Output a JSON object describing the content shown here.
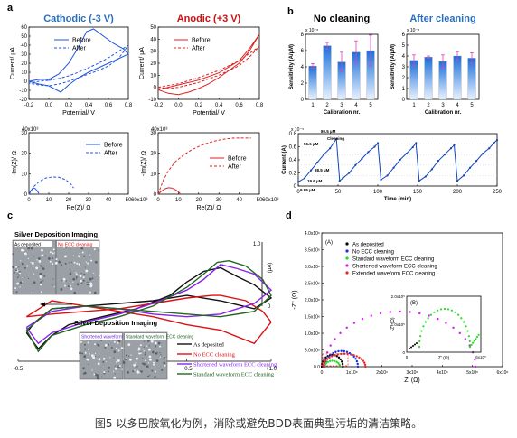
{
  "panels": {
    "a": "a",
    "b": "b",
    "c": "c",
    "d": "d"
  },
  "caption": "图5 以多巴胺氧化为例，消除或避免BDD表面典型污垢的清洁策略。",
  "chart_data": [
    {
      "id": "a-cv-cathodic",
      "type": "line",
      "title": "Cathodic (-3 V)",
      "title_color": "#2a6ebb",
      "xlabel": "Potential/ V",
      "ylabel": "Current/ µA",
      "xticks": [
        "-0.2",
        "0.0",
        "0.2",
        "0.4",
        "0.6",
        "0.8"
      ],
      "yticks": [
        "-20",
        "-10",
        "0",
        "10",
        "20",
        "30",
        "40",
        "50",
        "60"
      ],
      "xlim": [
        -0.2,
        0.8
      ],
      "ylim": [
        -20,
        60
      ],
      "series": [
        {
          "name": "Before",
          "style": "solid",
          "color": "#2255dd",
          "x": [
            0.0,
            0.1,
            0.2,
            0.3,
            0.38,
            0.45,
            0.55,
            0.65,
            0.75,
            0.8,
            0.7,
            0.6,
            0.5,
            0.4,
            0.3,
            0.2,
            0.12,
            0.05,
            0.0,
            -0.1,
            -0.2,
            -0.1,
            0.0
          ],
          "y": [
            2,
            8,
            20,
            38,
            55,
            58,
            50,
            42,
            36,
            30,
            25,
            20,
            15,
            10,
            4,
            -4,
            -12,
            -8,
            -5,
            -3,
            0,
            2,
            2
          ]
        },
        {
          "name": "After",
          "style": "dashed",
          "color": "#2255dd",
          "x": [
            0.0,
            0.1,
            0.2,
            0.3,
            0.4,
            0.5,
            0.6,
            0.7,
            0.8,
            0.7,
            0.6,
            0.5,
            0.4,
            0.3,
            0.2,
            0.1,
            0.0,
            -0.1,
            -0.2,
            -0.1,
            0.0
          ],
          "y": [
            1,
            3,
            6,
            10,
            15,
            20,
            26,
            33,
            40,
            25,
            17,
            12,
            8,
            4,
            0,
            -3,
            -5,
            -4,
            -2,
            0,
            1
          ]
        }
      ]
    },
    {
      "id": "a-cv-anodic",
      "type": "line",
      "title": "Anodic (+3 V)",
      "title_color": "#cc1111",
      "xlabel": "Potential/ V",
      "ylabel": "Current/ µA",
      "xticks": [
        "-0.2",
        "0.0",
        "0.2",
        "0.4",
        "0.6",
        "0.8"
      ],
      "yticks": [
        "-10",
        "0",
        "10",
        "20",
        "30",
        "40",
        "50"
      ],
      "xlim": [
        -0.2,
        0.8
      ],
      "ylim": [
        -10,
        50
      ],
      "series": [
        {
          "name": "Before",
          "style": "solid",
          "color": "#dd2222",
          "x": [
            -0.2,
            0.0,
            0.2,
            0.4,
            0.6,
            0.7,
            0.8,
            0.7,
            0.6,
            0.5,
            0.4,
            0.3,
            0.2,
            0.1,
            0.0,
            -0.1,
            -0.2
          ],
          "y": [
            -2,
            2,
            6,
            12,
            22,
            32,
            44,
            30,
            20,
            14,
            8,
            3,
            -1,
            -4,
            -6,
            -5,
            -2
          ]
        },
        {
          "name": "After",
          "style": "dashed",
          "color": "#dd2222",
          "x": [
            -0.2,
            0.0,
            0.2,
            0.4,
            0.6,
            0.7,
            0.8,
            0.7,
            0.6,
            0.4,
            0.2,
            0.0,
            -0.1,
            -0.2
          ],
          "y": [
            0,
            3,
            8,
            14,
            22,
            28,
            34,
            25,
            18,
            10,
            4,
            0,
            -1,
            0
          ]
        }
      ]
    },
    {
      "id": "a-eis-cathodic",
      "type": "line",
      "xlabel": "Re(Z)/ Ω",
      "ylabel": "-Im(Z)/ Ω",
      "x_exponent": "60x10³",
      "y_exponent": "40x10³",
      "xticks": [
        "0",
        "10",
        "20",
        "30",
        "40",
        "50"
      ],
      "yticks": [
        "0",
        "10",
        "20",
        "30"
      ],
      "xlim": [
        0,
        60
      ],
      "ylim": [
        0,
        40
      ],
      "series": [
        {
          "name": "Before",
          "style": "solid",
          "color": "#2255dd",
          "x": [
            0,
            1,
            2,
            3,
            4,
            5,
            6
          ],
          "y": [
            0,
            2,
            3.5,
            4,
            3.5,
            2,
            0.5
          ]
        },
        {
          "name": "After",
          "style": "dashed",
          "color": "#2255dd",
          "x": [
            0,
            3,
            6,
            10,
            14,
            18,
            22,
            25,
            27
          ],
          "y": [
            0,
            5,
            8,
            10.5,
            11.2,
            11,
            9.5,
            7,
            4
          ]
        }
      ]
    },
    {
      "id": "a-eis-anodic",
      "type": "line",
      "xlabel": "Re(Z)/ Ω",
      "ylabel": "-Im(Z)/ Ω",
      "x_exponent": "60x10³",
      "y_exponent": "40x10³",
      "xticks": [
        "0",
        "10",
        "20",
        "30",
        "40",
        "50"
      ],
      "yticks": [
        "0",
        "10",
        "20",
        "30"
      ],
      "xlim": [
        0,
        60
      ],
      "ylim": [
        0,
        40
      ],
      "series": [
        {
          "name": "Before",
          "style": "solid",
          "color": "#dd2222",
          "x": [
            0,
            2,
            4,
            6,
            8,
            10,
            12,
            13
          ],
          "y": [
            0,
            2,
            3.5,
            4.2,
            4,
            3,
            1.5,
            0.5
          ]
        },
        {
          "name": "After",
          "style": "dashed",
          "color": "#dd2222",
          "x": [
            0,
            3,
            6,
            10,
            15,
            20,
            25,
            30,
            35,
            40,
            45,
            50,
            55
          ],
          "y": [
            0,
            9,
            15,
            21,
            25.5,
            29,
            31.5,
            33.5,
            35,
            36,
            36.5,
            36.5,
            36.5
          ]
        }
      ]
    },
    {
      "id": "b-no-cleaning",
      "type": "bar",
      "title": "No cleaning",
      "exponent": "x 10⁻⁸",
      "xlabel": "Calibration nr.",
      "ylabel": "Sensitivity (A/µM)",
      "categories": [
        "1",
        "2",
        "3",
        "4",
        "5"
      ],
      "values": [
        4.1,
        6.6,
        4.6,
        5.8,
        6.0
      ],
      "errors": [
        0.3,
        0.4,
        1.2,
        1.4,
        1.9
      ],
      "yticks": [
        "0",
        "2",
        "4",
        "6",
        "8"
      ],
      "ylim": [
        0,
        8
      ]
    },
    {
      "id": "b-after-cleaning",
      "type": "bar",
      "title": "After cleaning",
      "title_color": "#2a6ebb",
      "exponent": "x 10⁻⁸",
      "xlabel": "Calibration nr.",
      "ylabel": "Sensitivity (A/µM)",
      "categories": [
        "1",
        "2",
        "3",
        "4",
        "5"
      ],
      "values": [
        3.6,
        3.9,
        3.5,
        4.0,
        3.8
      ],
      "errors": [
        0.5,
        0.1,
        0.6,
        0.4,
        0.5
      ],
      "yticks": [
        "0",
        "1",
        "2",
        "3",
        "4",
        "5",
        "6"
      ],
      "ylim": [
        0,
        6
      ]
    },
    {
      "id": "b-time-trace",
      "type": "line",
      "xlabel": "Time (min)",
      "ylabel": "Current (A)",
      "exponent": "x 10⁻⁵",
      "xticks": [
        "0",
        "50",
        "100",
        "150",
        "200",
        "250"
      ],
      "yticks": [
        "0",
        "0.2",
        "0.4",
        "0.6",
        "0.8"
      ],
      "xlim": [
        0,
        250
      ],
      "ylim": [
        0,
        1.0
      ],
      "annotations": [
        "80.5 µM",
        "Cleaning",
        "56.6 µM",
        "38.5 µM",
        "19.6 µM",
        "9.99 µM"
      ],
      "series": [
        {
          "name": "",
          "color": "#1144bb",
          "x": [
            0,
            8,
            16,
            24,
            32,
            40,
            48,
            52,
            56,
            64,
            72,
            80,
            88,
            96,
            100,
            104,
            112,
            120,
            128,
            136,
            144,
            148,
            152,
            160,
            168,
            176,
            184,
            192,
            196,
            200,
            208,
            216,
            224,
            232,
            240,
            246,
            250
          ],
          "y": [
            0.08,
            0.15,
            0.3,
            0.45,
            0.6,
            0.72,
            0.9,
            0.1,
            0.15,
            0.25,
            0.4,
            0.52,
            0.65,
            0.75,
            0.82,
            0.12,
            0.2,
            0.35,
            0.5,
            0.62,
            0.74,
            0.82,
            0.1,
            0.18,
            0.32,
            0.48,
            0.6,
            0.72,
            0.78,
            0.1,
            0.2,
            0.35,
            0.48,
            0.62,
            0.72,
            0.82,
            0.88
          ]
        }
      ]
    },
    {
      "id": "c-cv-overlay",
      "type": "line",
      "xlabel": "V",
      "ylabel": "I (µA)",
      "xticks": [
        "-0.5",
        "0.0",
        "+0.5",
        "+1.0"
      ],
      "yticks": [
        "0",
        "1.0"
      ],
      "xlim": [
        -0.5,
        1.0
      ],
      "ylim": [
        -1.0,
        1.2
      ],
      "series": [
        {
          "name": "As deposited",
          "color": "#111111",
          "x": [
            -0.45,
            -0.38,
            -0.3,
            -0.2,
            0.0,
            0.2,
            0.4,
            0.5,
            0.6,
            0.7,
            0.8,
            0.9,
            1.0,
            0.9,
            0.7,
            0.5,
            0.3,
            0.1,
            -0.1,
            -0.3,
            -0.4,
            -0.45
          ],
          "y": [
            -0.5,
            -0.8,
            -0.55,
            -0.35,
            -0.2,
            -0.05,
            0.2,
            0.45,
            0.65,
            0.72,
            0.55,
            0.4,
            0.15,
            -0.05,
            0.1,
            0.2,
            0.1,
            0.05,
            0.0,
            -0.05,
            -0.3,
            -0.5
          ]
        },
        {
          "name": "No ECC cleaning",
          "color": "#dd1111",
          "x": [
            -0.45,
            -0.3,
            -0.1,
            0.1,
            0.3,
            0.5,
            0.65,
            0.7,
            0.85,
            0.95,
            1.0,
            0.9,
            0.7,
            0.5,
            0.3,
            0.1,
            -0.1,
            -0.3,
            -0.45
          ],
          "y": [
            -0.2,
            -0.15,
            -0.1,
            -0.05,
            0.05,
            0.15,
            0.2,
            0.2,
            0.1,
            -0.1,
            -0.3,
            -0.7,
            -0.45,
            -0.35,
            -0.2,
            -0.1,
            0.0,
            0.1,
            -0.2
          ]
        },
        {
          "name": "Shortened waveform ECC cleaning",
          "color": "#8822ee",
          "x": [
            -0.45,
            -0.38,
            -0.3,
            -0.1,
            0.1,
            0.3,
            0.5,
            0.6,
            0.7,
            0.8,
            0.9,
            1.0,
            0.9,
            0.7,
            0.5,
            0.3,
            0.1,
            -0.1,
            -0.3,
            -0.45
          ],
          "y": [
            -0.4,
            -0.7,
            -0.5,
            -0.3,
            -0.15,
            0.05,
            0.3,
            0.5,
            0.78,
            0.7,
            0.6,
            0.3,
            0.05,
            -0.15,
            -0.2,
            -0.15,
            -0.05,
            0.0,
            -0.1,
            -0.4
          ]
        },
        {
          "name": "Standard waveform ECC cleaning",
          "color": "#226622",
          "x": [
            -0.45,
            -0.38,
            -0.3,
            -0.1,
            0.1,
            0.3,
            0.5,
            0.6,
            0.68,
            0.75,
            0.85,
            0.95,
            1.0,
            0.9,
            0.7,
            0.5,
            0.3,
            0.1,
            -0.1,
            -0.3,
            -0.45
          ],
          "y": [
            -0.45,
            -0.85,
            -0.55,
            -0.35,
            -0.2,
            0.0,
            0.35,
            0.6,
            0.82,
            0.85,
            0.75,
            0.5,
            0.2,
            -0.1,
            -0.2,
            -0.15,
            -0.1,
            -0.05,
            0.0,
            -0.05,
            -0.45
          ]
        }
      ],
      "labels": {
        "imaging_top": "Silver Deposition Imaging",
        "imaging_bottom": "Silver Deposition Imaging",
        "photo1": "As deposited",
        "photo2": "No ECC cleaning",
        "photo3": "Shortened waveform ECC cleaning",
        "photo4": "Standard waveform ECC cleaning"
      }
    },
    {
      "id": "d-nyquist",
      "type": "scatter",
      "xlabel": "Z' (Ω)",
      "ylabel": "-Z'' (Ω)",
      "xticks": [
        "0",
        "1x10⁶",
        "2x10⁶",
        "3x10⁶",
        "4x10⁶",
        "5x10⁶",
        "6x10⁶"
      ],
      "yticks": [
        "0.0",
        "5.0x10⁵",
        "1.0x10⁶",
        "1.5x10⁶",
        "2.0x10⁶",
        "2.5x10⁶",
        "3.0x10⁶",
        "3.5x10⁶",
        "4.0x10⁶"
      ],
      "xlim": [
        0,
        6000000
      ],
      "ylim": [
        0,
        4000000
      ],
      "panel_label_main": "(A)",
      "panel_label_inset": "(B)",
      "inset": {
        "xlabel": "Z' (Ω)",
        "ylabel": "-Z'' (Ω)",
        "xticks": [
          "0",
          "6x10⁵"
        ],
        "yticks": [
          "0",
          "1.0x10⁵",
          "2.0x10⁵"
        ]
      },
      "series": [
        {
          "name": "As deposited",
          "color": "#000000"
        },
        {
          "name": "No ECC cleaning",
          "color": "#1133ee"
        },
        {
          "name": "Standard waveform ECC cleaning",
          "color": "#22dd22"
        },
        {
          "name": "Shortened waveform ECC cleaning",
          "color": "#cc22ee"
        },
        {
          "name": "Extended waveform ECC cleaning",
          "color": "#ee2222"
        }
      ]
    }
  ]
}
